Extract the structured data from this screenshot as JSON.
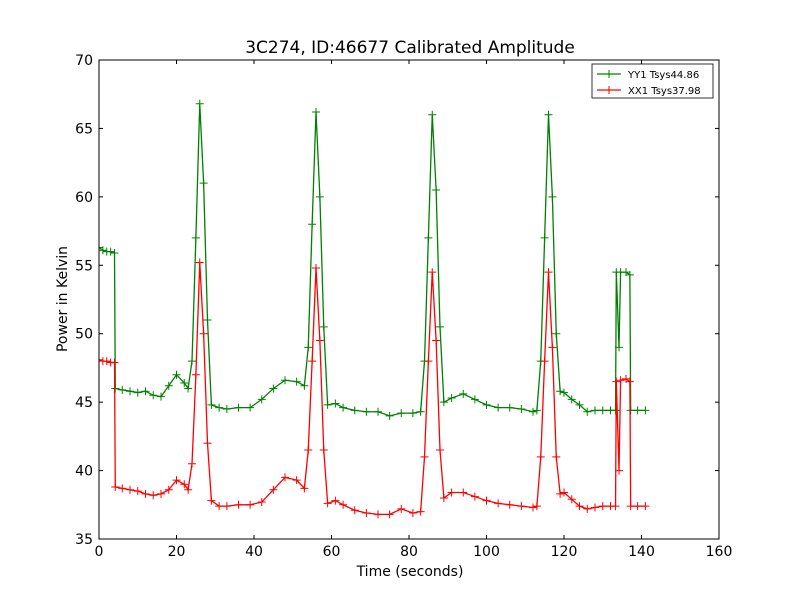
{
  "chart_data": {
    "type": "line",
    "title": "3C274, ID:46677 Calibrated Amplitude",
    "xlabel": "Time (seconds)",
    "ylabel": "Power in Kelvin",
    "xlim": [
      0,
      160
    ],
    "ylim": [
      35,
      70
    ],
    "xticks": [
      "0",
      "20",
      "40",
      "60",
      "80",
      "100",
      "120",
      "140",
      "160"
    ],
    "yticks": [
      "35",
      "40",
      "45",
      "50",
      "55",
      "60",
      "65",
      "70"
    ],
    "grid": false,
    "legend_position": "top-right",
    "marker": "+",
    "series": [
      {
        "name": "YY1 Tsys44.86",
        "color": "#008000",
        "points": [
          [
            0,
            56.3
          ],
          [
            1,
            56.1
          ],
          [
            2,
            56.0
          ],
          [
            3,
            56.0
          ],
          [
            4,
            55.9
          ],
          [
            4.2,
            46.0
          ],
          [
            6,
            45.9
          ],
          [
            8,
            45.8
          ],
          [
            10,
            45.7
          ],
          [
            12,
            45.8
          ],
          [
            14,
            45.5
          ],
          [
            16,
            45.4
          ],
          [
            18,
            46.2
          ],
          [
            20,
            47.0
          ],
          [
            22,
            46.4
          ],
          [
            23,
            46.0
          ],
          [
            24,
            48.0
          ],
          [
            25,
            57.0
          ],
          [
            26,
            66.8
          ],
          [
            27,
            61.0
          ],
          [
            28,
            51.0
          ],
          [
            29,
            44.8
          ],
          [
            31,
            44.6
          ],
          [
            33,
            44.5
          ],
          [
            36,
            44.6
          ],
          [
            39,
            44.6
          ],
          [
            42,
            45.2
          ],
          [
            45,
            46.0
          ],
          [
            48,
            46.6
          ],
          [
            51,
            46.5
          ],
          [
            53,
            46.2
          ],
          [
            54,
            49.0
          ],
          [
            55,
            58.0
          ],
          [
            56,
            66.2
          ],
          [
            57,
            60.0
          ],
          [
            58,
            50.5
          ],
          [
            59,
            44.8
          ],
          [
            61,
            44.9
          ],
          [
            63,
            44.6
          ],
          [
            66,
            44.4
          ],
          [
            69,
            44.3
          ],
          [
            72,
            44.3
          ],
          [
            75,
            44.0
          ],
          [
            78,
            44.2
          ],
          [
            81,
            44.2
          ],
          [
            83,
            44.3
          ],
          [
            84,
            48.0
          ],
          [
            85,
            57.0
          ],
          [
            86,
            66.0
          ],
          [
            87,
            60.5
          ],
          [
            88,
            50.5
          ],
          [
            89,
            45.0
          ],
          [
            91,
            45.3
          ],
          [
            94,
            45.6
          ],
          [
            97,
            45.2
          ],
          [
            100,
            44.8
          ],
          [
            103,
            44.6
          ],
          [
            106,
            44.6
          ],
          [
            109,
            44.5
          ],
          [
            112,
            44.3
          ],
          [
            113,
            44.4
          ],
          [
            114,
            48.0
          ],
          [
            115,
            57.0
          ],
          [
            116,
            66.0
          ],
          [
            117,
            60.0
          ],
          [
            118,
            50.0
          ],
          [
            119,
            45.8
          ],
          [
            120,
            45.7
          ],
          [
            122,
            45.2
          ],
          [
            124,
            44.8
          ],
          [
            126,
            44.3
          ],
          [
            128,
            44.4
          ],
          [
            130,
            44.4
          ],
          [
            132,
            44.4
          ],
          [
            133.3,
            44.4
          ],
          [
            133.5,
            54.5
          ],
          [
            134.2,
            49.0
          ],
          [
            134.6,
            54.5
          ],
          [
            136,
            54.5
          ],
          [
            137,
            54.3
          ],
          [
            137.2,
            44.4
          ],
          [
            139,
            44.4
          ],
          [
            141,
            44.4
          ]
        ]
      },
      {
        "name": "XX1 Tsys37.98",
        "color": "#ff0000",
        "points": [
          [
            0,
            48.1
          ],
          [
            1,
            48.0
          ],
          [
            2,
            48.0
          ],
          [
            3,
            47.9
          ],
          [
            4,
            47.9
          ],
          [
            4.2,
            38.8
          ],
          [
            6,
            38.7
          ],
          [
            8,
            38.6
          ],
          [
            10,
            38.5
          ],
          [
            12,
            38.3
          ],
          [
            14,
            38.2
          ],
          [
            16,
            38.3
          ],
          [
            18,
            38.6
          ],
          [
            20,
            39.3
          ],
          [
            22,
            39.0
          ],
          [
            23,
            38.6
          ],
          [
            24,
            40.5
          ],
          [
            25,
            47.0
          ],
          [
            26,
            55.2
          ],
          [
            27,
            50.0
          ],
          [
            28,
            42.0
          ],
          [
            29,
            37.8
          ],
          [
            31,
            37.4
          ],
          [
            33,
            37.4
          ],
          [
            36,
            37.5
          ],
          [
            39,
            37.5
          ],
          [
            42,
            37.7
          ],
          [
            45,
            38.6
          ],
          [
            48,
            39.5
          ],
          [
            51,
            39.3
          ],
          [
            53,
            38.7
          ],
          [
            54,
            41.5
          ],
          [
            55,
            48.0
          ],
          [
            56,
            54.8
          ],
          [
            57,
            49.5
          ],
          [
            58,
            41.5
          ],
          [
            59,
            37.6
          ],
          [
            61,
            37.8
          ],
          [
            63,
            37.5
          ],
          [
            66,
            37.1
          ],
          [
            69,
            36.9
          ],
          [
            72,
            36.8
          ],
          [
            75,
            36.8
          ],
          [
            78,
            37.2
          ],
          [
            81,
            36.9
          ],
          [
            83,
            37.0
          ],
          [
            84,
            41.0
          ],
          [
            85,
            48.0
          ],
          [
            86,
            54.5
          ],
          [
            87,
            49.5
          ],
          [
            88,
            41.5
          ],
          [
            89,
            38.0
          ],
          [
            91,
            38.4
          ],
          [
            94,
            38.4
          ],
          [
            97,
            38.1
          ],
          [
            100,
            37.8
          ],
          [
            103,
            37.6
          ],
          [
            106,
            37.5
          ],
          [
            109,
            37.4
          ],
          [
            112,
            37.3
          ],
          [
            113,
            37.4
          ],
          [
            114,
            41.0
          ],
          [
            115,
            48.0
          ],
          [
            116,
            54.5
          ],
          [
            117,
            49.0
          ],
          [
            118,
            41.0
          ],
          [
            119,
            38.3
          ],
          [
            120,
            38.4
          ],
          [
            122,
            37.9
          ],
          [
            124,
            37.4
          ],
          [
            126,
            37.2
          ],
          [
            128,
            37.3
          ],
          [
            130,
            37.4
          ],
          [
            132,
            37.4
          ],
          [
            133.3,
            37.4
          ],
          [
            133.5,
            46.5
          ],
          [
            134.2,
            40.0
          ],
          [
            134.6,
            46.6
          ],
          [
            136,
            46.7
          ],
          [
            137,
            46.5
          ],
          [
            137.2,
            37.4
          ],
          [
            139,
            37.4
          ],
          [
            141,
            37.4
          ]
        ]
      }
    ]
  }
}
